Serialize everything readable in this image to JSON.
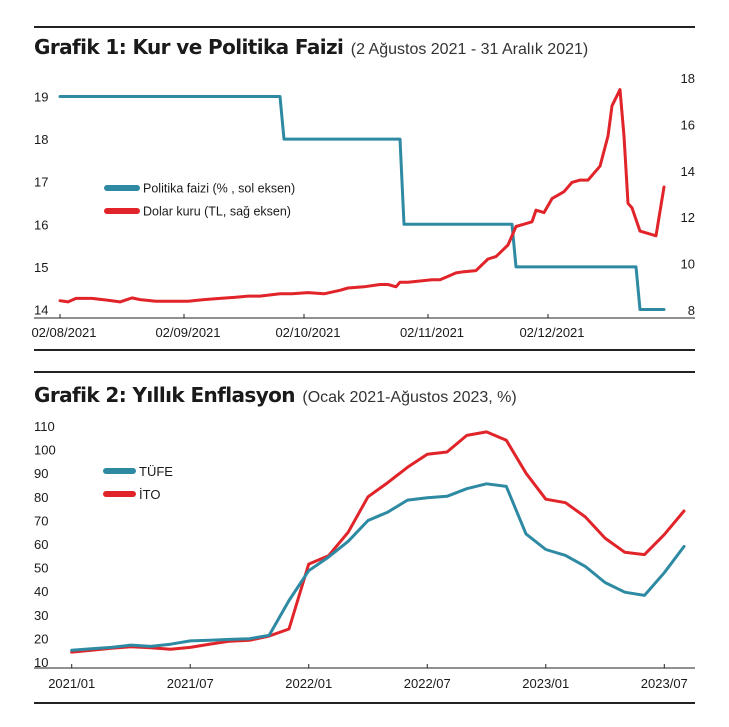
{
  "colors": {
    "teal": "#2e8aa3",
    "red": "#e0242a",
    "axis": "#222222"
  },
  "chart_data": [
    {
      "type": "line",
      "title": "Grafik 1: Kur ve Politika Faizi",
      "subtitle": "(2 Ağustos 2021 - 31 Aralık 2021)",
      "x_tick_labels": [
        "02/08/2021",
        "02/09/2021",
        "02/10/2021",
        "02/11/2021",
        "02/12/2021"
      ],
      "x_tick_days": [
        0,
        31,
        61,
        92,
        122
      ],
      "x_range_days": [
        -2,
        151
      ],
      "left_axis": {
        "ticks": [
          19,
          18,
          17,
          16,
          15,
          14
        ],
        "range": [
          13.8,
          19.2
        ]
      },
      "right_axis": {
        "ticks": [
          18,
          16,
          14,
          12,
          10,
          8
        ],
        "range": [
          8,
          18
        ]
      },
      "legend_position": "center-left",
      "series": [
        {
          "name": "Politika faizi (% , sol eksen)",
          "axis": "left",
          "color": "#2e8aa3",
          "x_days": [
            0,
            55,
            56,
            85,
            86,
            113,
            114,
            144,
            145,
            151
          ],
          "values": [
            19,
            19,
            18,
            18,
            16,
            16,
            15,
            15,
            14,
            14
          ]
        },
        {
          "name": "Dolar kuru (TL, sağ eksen)",
          "axis": "right",
          "color": "#e0242a",
          "x_days": [
            0,
            2,
            4,
            8,
            12,
            15,
            18,
            20,
            24,
            26,
            29,
            32,
            36,
            40,
            44,
            47,
            50,
            55,
            58,
            62,
            66,
            70,
            72,
            76,
            80,
            82,
            84,
            85,
            87,
            90,
            93,
            95,
            97,
            99,
            101,
            104,
            107,
            109,
            112,
            114,
            116,
            118,
            119,
            121,
            123,
            126,
            128,
            130,
            132,
            134,
            135,
            137,
            138,
            140,
            141,
            142,
            143,
            145,
            147,
            149,
            151
          ],
          "values": [
            8.4,
            8.35,
            8.5,
            8.5,
            8.42,
            8.35,
            8.52,
            8.45,
            8.38,
            8.38,
            8.38,
            8.38,
            8.45,
            8.5,
            8.55,
            8.6,
            8.6,
            8.7,
            8.7,
            8.75,
            8.7,
            8.85,
            8.95,
            9.0,
            9.1,
            9.1,
            9.0,
            9.2,
            9.2,
            9.25,
            9.3,
            9.3,
            9.45,
            9.6,
            9.65,
            9.7,
            10.2,
            10.3,
            10.8,
            11.6,
            11.7,
            11.8,
            12.3,
            12.2,
            12.8,
            13.1,
            13.5,
            13.6,
            13.6,
            14.0,
            14.2,
            15.5,
            16.8,
            17.5,
            15.5,
            12.6,
            12.4,
            11.4,
            11.3,
            11.2,
            13.3
          ]
        }
      ]
    },
    {
      "type": "line",
      "title": "Grafik 2: Yıllık Enflasyon",
      "subtitle": "(Ocak 2021-Ağustos 2023, %)",
      "x_tick_labels": [
        "2021/01",
        "2021/07",
        "2022/01",
        "2022/07",
        "2023/01",
        "2023/07"
      ],
      "x_tick_months": [
        0,
        6,
        12,
        18,
        24,
        30
      ],
      "x_range_months": [
        -1.2,
        31.2
      ],
      "y_ticks": [
        110,
        100,
        90,
        80,
        70,
        60,
        50,
        40,
        30,
        20,
        10
      ],
      "ylim": [
        10,
        110
      ],
      "legend_position": "top-left",
      "series": [
        {
          "name": "TÜFE",
          "color": "#2e8aa3",
          "x_months": [
            0,
            1,
            2,
            3,
            4,
            5,
            6,
            7,
            8,
            9,
            10,
            11,
            12,
            13,
            14,
            15,
            16,
            17,
            18,
            19,
            20,
            21,
            22,
            23,
            24,
            25,
            26,
            27,
            28,
            29,
            30,
            31
          ],
          "values": [
            14.97,
            15.61,
            16.19,
            17.14,
            16.59,
            17.53,
            18.95,
            19.25,
            19.58,
            19.89,
            21.31,
            36.08,
            48.69,
            54.44,
            61.14,
            69.97,
            73.5,
            78.62,
            79.6,
            80.21,
            83.45,
            85.51,
            84.39,
            64.27,
            57.68,
            55.18,
            50.51,
            43.68,
            39.59,
            38.21,
            47.83,
            58.94
          ]
        },
        {
          "name": "İTO",
          "color": "#e0242a",
          "x_months": [
            0,
            1,
            2,
            3,
            4,
            5,
            6,
            7,
            8,
            9,
            10,
            11,
            12,
            13,
            14,
            15,
            16,
            17,
            18,
            19,
            20,
            21,
            22,
            23,
            24,
            25,
            26,
            27,
            28,
            29,
            30,
            31
          ],
          "values": [
            14.2,
            15.0,
            15.8,
            16.5,
            16.0,
            15.4,
            16.2,
            17.6,
            18.8,
            19.2,
            21.0,
            24.0,
            51.5,
            55.0,
            65.0,
            80.0,
            86.0,
            92.5,
            98.0,
            99.0,
            106.0,
            107.5,
            104.0,
            90.0,
            79.0,
            77.5,
            71.5,
            62.5,
            56.5,
            55.5,
            64.0,
            74.0
          ]
        }
      ]
    }
  ]
}
